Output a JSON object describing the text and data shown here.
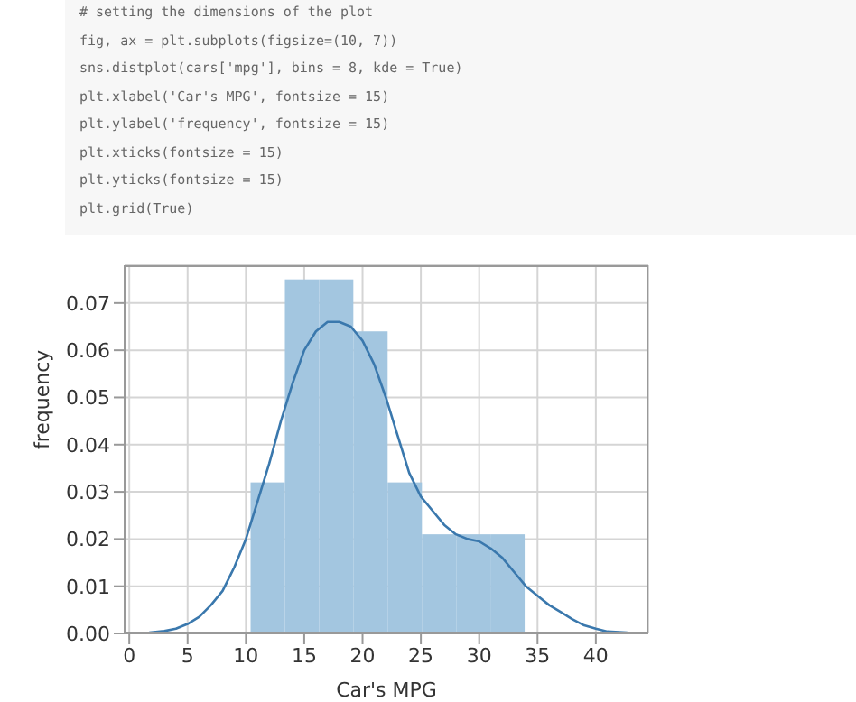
{
  "chart_data": {
    "type": "histogram",
    "xlabel": "Car's MPG",
    "ylabel": "frequency",
    "annotations": [
      "# setting the dimensions of the plot",
      "fig, ax = plt.subplots(figsize=(10, 7))",
      "sns.distplot(cars['mpg'], bins = 8, kde = True)",
      "plt.xlabel('Car's MPG', fontsize = 15)",
      "plt.ylabel('frequency', fontsize = 15)",
      "plt.xticks(fontsize = 15)",
      "plt.yticks(fontsize = 15)",
      "plt.grid(True)"
    ],
    "bins": [
      10.4,
      13.34,
      16.28,
      19.21,
      22.15,
      25.09,
      28.03,
      30.96,
      33.9
    ],
    "values": [
      0.032,
      0.075,
      0.075,
      0.064,
      0.032,
      0.021,
      0.021,
      0.021
    ],
    "color": "#a3c6e0",
    "series": [
      {
        "type": "line",
        "color": "#3a78ad",
        "x": [
          1.7,
          3,
          4,
          5,
          6,
          7,
          8,
          9,
          10,
          11,
          12,
          13,
          14,
          15,
          16,
          17,
          18,
          19,
          20,
          21,
          22,
          23,
          24,
          25,
          26,
          27,
          28,
          29,
          30,
          31,
          32,
          33,
          34,
          35,
          36,
          37,
          38,
          39,
          40,
          41,
          42.7
        ],
        "values": [
          0.0002,
          0.0005,
          0.001,
          0.002,
          0.0035,
          0.006,
          0.009,
          0.014,
          0.02,
          0.028,
          0.036,
          0.045,
          0.053,
          0.06,
          0.064,
          0.066,
          0.066,
          0.065,
          0.062,
          0.057,
          0.05,
          0.042,
          0.034,
          0.029,
          0.026,
          0.023,
          0.021,
          0.02,
          0.0195,
          0.018,
          0.016,
          0.013,
          0.01,
          0.008,
          0.006,
          0.0045,
          0.003,
          0.0017,
          0.001,
          0.0004,
          0.0002
        ]
      }
    ],
    "xlim": [
      -0.4,
      44.5
    ],
    "xticks": [
      0,
      5,
      10,
      15,
      20,
      25,
      30,
      35,
      40
    ],
    "ylim": [
      0,
      0.078
    ],
    "yticks": [
      {
        "value": 0,
        "label": "0.00"
      },
      {
        "value": 0.01,
        "label": "0.01"
      },
      {
        "value": 0.02,
        "label": "0.02"
      },
      {
        "value": 0.03,
        "label": "0.03"
      },
      {
        "value": 0.04,
        "label": "0.04"
      },
      {
        "value": 0.05,
        "label": "0.05"
      },
      {
        "value": 0.06,
        "label": "0.06"
      },
      {
        "value": 0.07,
        "label": "0.07"
      }
    ],
    "grid": true
  }
}
